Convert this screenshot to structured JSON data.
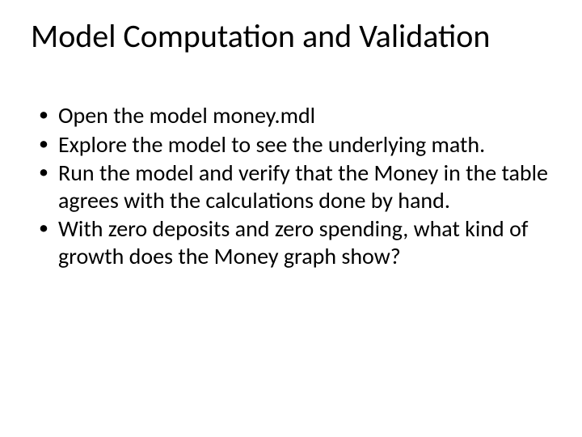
{
  "slide": {
    "title": "Model Computation and Validation",
    "bullets": [
      "Open the model money.mdl",
      "Explore the model to see the underlying math.",
      "Run the model and verify that the Money in the table agrees with the calculations done by hand.",
      "With zero deposits and zero spending, what kind of growth does the Money graph show?"
    ],
    "title_fontsize": 40,
    "body_fontsize": 28,
    "text_color": "#000000",
    "background_color": "#ffffff",
    "font_family": "Calibri"
  }
}
